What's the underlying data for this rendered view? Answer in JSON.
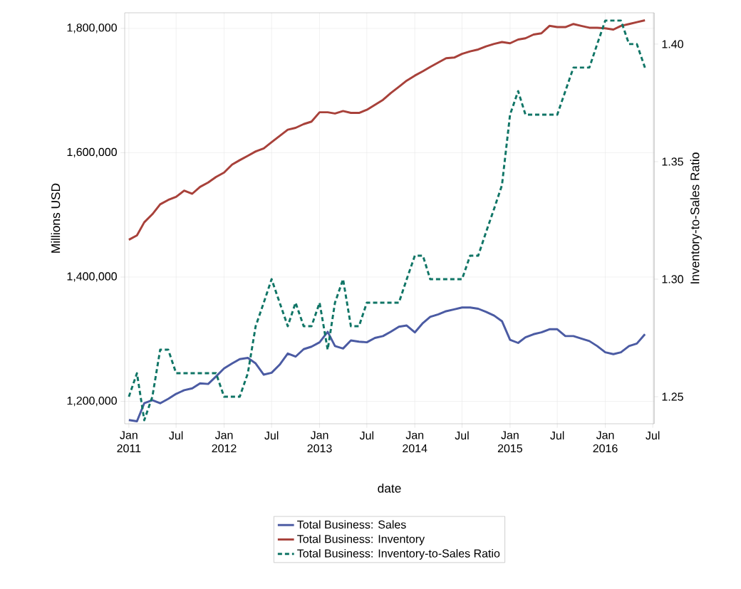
{
  "chart_data": {
    "type": "line",
    "xlabel": "date",
    "ylabel": "Millions USD",
    "y2label": "Inventory-to-Sales Ratio",
    "x": [
      "2011-01",
      "2011-02",
      "2011-03",
      "2011-04",
      "2011-05",
      "2011-06",
      "2011-07",
      "2011-08",
      "2011-09",
      "2011-10",
      "2011-11",
      "2011-12",
      "2012-01",
      "2012-02",
      "2012-03",
      "2012-04",
      "2012-05",
      "2012-06",
      "2012-07",
      "2012-08",
      "2012-09",
      "2012-10",
      "2012-11",
      "2012-12",
      "2013-01",
      "2013-02",
      "2013-03",
      "2013-04",
      "2013-05",
      "2013-06",
      "2013-07",
      "2013-08",
      "2013-09",
      "2013-10",
      "2013-11",
      "2013-12",
      "2014-01",
      "2014-02",
      "2014-03",
      "2014-04",
      "2014-05",
      "2014-06",
      "2014-07",
      "2014-08",
      "2014-09",
      "2014-10",
      "2014-11",
      "2014-12",
      "2015-01",
      "2015-02",
      "2015-03",
      "2015-04",
      "2015-05",
      "2015-06",
      "2015-07",
      "2015-08",
      "2015-09",
      "2015-10",
      "2015-11",
      "2015-12",
      "2016-01",
      "2016-02",
      "2016-03",
      "2016-04",
      "2016-05",
      "2016-06"
    ],
    "series": [
      {
        "name": "Total Business: Sales",
        "color": "#4b5ba3",
        "line_style": "solid",
        "values": [
          1170000,
          1168000,
          1197000,
          1202000,
          1197000,
          1204000,
          1212000,
          1218000,
          1221000,
          1229000,
          1228000,
          1240000,
          1253000,
          1261000,
          1268000,
          1270000,
          1261000,
          1243000,
          1246000,
          1259000,
          1277000,
          1272000,
          1284000,
          1288000,
          1295000,
          1312000,
          1289000,
          1285000,
          1298000,
          1296000,
          1295000,
          1302000,
          1305000,
          1312000,
          1320000,
          1322000,
          1311000,
          1326000,
          1336000,
          1340000,
          1345000,
          1348000,
          1351000,
          1351000,
          1349000,
          1344000,
          1338000,
          1329000,
          1299000,
          1294000,
          1303000,
          1308000,
          1311000,
          1316000,
          1316000,
          1305000,
          1305000,
          1301000,
          1297000,
          1289000,
          1279000,
          1276000,
          1279000,
          1289000,
          1293000,
          1308000
        ]
      },
      {
        "name": "Total Business: Inventory",
        "color": "#a8413a",
        "line_style": "solid",
        "values": [
          1460000,
          1467000,
          1488000,
          1501000,
          1517000,
          1524000,
          1529000,
          1539000,
          1534000,
          1545000,
          1552000,
          1561000,
          1568000,
          1581000,
          1588000,
          1595000,
          1602000,
          1607000,
          1617000,
          1627000,
          1637000,
          1640000,
          1646000,
          1650000,
          1665000,
          1665000,
          1663000,
          1667000,
          1664000,
          1664000,
          1669000,
          1677000,
          1685000,
          1696000,
          1706000,
          1716000,
          1724000,
          1731000,
          1738000,
          1745000,
          1752000,
          1753000,
          1759000,
          1763000,
          1766000,
          1771000,
          1775000,
          1778000,
          1776000,
          1782000,
          1784000,
          1790000,
          1792000,
          1804000,
          1802000,
          1802000,
          1807000,
          1804000,
          1801000,
          1801000,
          1800000,
          1798000,
          1804000,
          1807000,
          1810000,
          1813000
        ]
      },
      {
        "name": "Total Business: Inventory-to-Sales Ratio",
        "color": "#107566",
        "line_style": "dashed",
        "axis": "y2",
        "values": [
          1.25,
          1.26,
          1.24,
          1.25,
          1.27,
          1.27,
          1.26,
          1.26,
          1.26,
          1.26,
          1.26,
          1.26,
          1.25,
          1.25,
          1.25,
          1.26,
          1.28,
          1.29,
          1.3,
          1.29,
          1.28,
          1.29,
          1.28,
          1.28,
          1.29,
          1.27,
          1.29,
          1.3,
          1.28,
          1.28,
          1.29,
          1.29,
          1.29,
          1.29,
          1.29,
          1.3,
          1.31,
          1.31,
          1.3,
          1.3,
          1.3,
          1.3,
          1.3,
          1.31,
          1.31,
          1.32,
          1.33,
          1.34,
          1.37,
          1.38,
          1.37,
          1.37,
          1.37,
          1.37,
          1.37,
          1.38,
          1.39,
          1.39,
          1.39,
          1.4,
          1.41,
          1.41,
          1.41,
          1.4,
          1.4,
          1.39
        ]
      }
    ],
    "xlim": [
      "2010-12-16",
      "2016-07-06"
    ],
    "xticks": [
      {
        "value": "2011-01",
        "label": "Jan 2011"
      },
      {
        "value": "2011-07",
        "label": "Jul"
      },
      {
        "value": "2012-01",
        "label": "Jan 2012"
      },
      {
        "value": "2012-07",
        "label": "Jul"
      },
      {
        "value": "2013-01",
        "label": "Jan 2013"
      },
      {
        "value": "2013-07",
        "label": "Jul"
      },
      {
        "value": "2014-01",
        "label": "Jan 2014"
      },
      {
        "value": "2014-07",
        "label": "Jul"
      },
      {
        "value": "2015-01",
        "label": "Jan 2015"
      },
      {
        "value": "2015-07",
        "label": "Jul"
      },
      {
        "value": "2016-01",
        "label": "Jan 2016"
      },
      {
        "value": "2016-07",
        "label": "Jul"
      }
    ],
    "ylim": [
      1164000,
      1825000
    ],
    "yticks": [
      {
        "value": 1200000,
        "label": "1,200,000"
      },
      {
        "value": 1400000,
        "label": "1,400,000"
      },
      {
        "value": 1600000,
        "label": "1,600,000"
      },
      {
        "value": 1800000,
        "label": "1,800,000"
      }
    ],
    "y2lim": [
      1.2385,
      1.4133
    ],
    "y2ticks": [
      1.25,
      {
        "value": 1.3,
        "label": "1.30"
      },
      1.35,
      {
        "value": 1.4,
        "label": "1.40"
      }
    ],
    "grid": true,
    "legend": "bottom"
  }
}
